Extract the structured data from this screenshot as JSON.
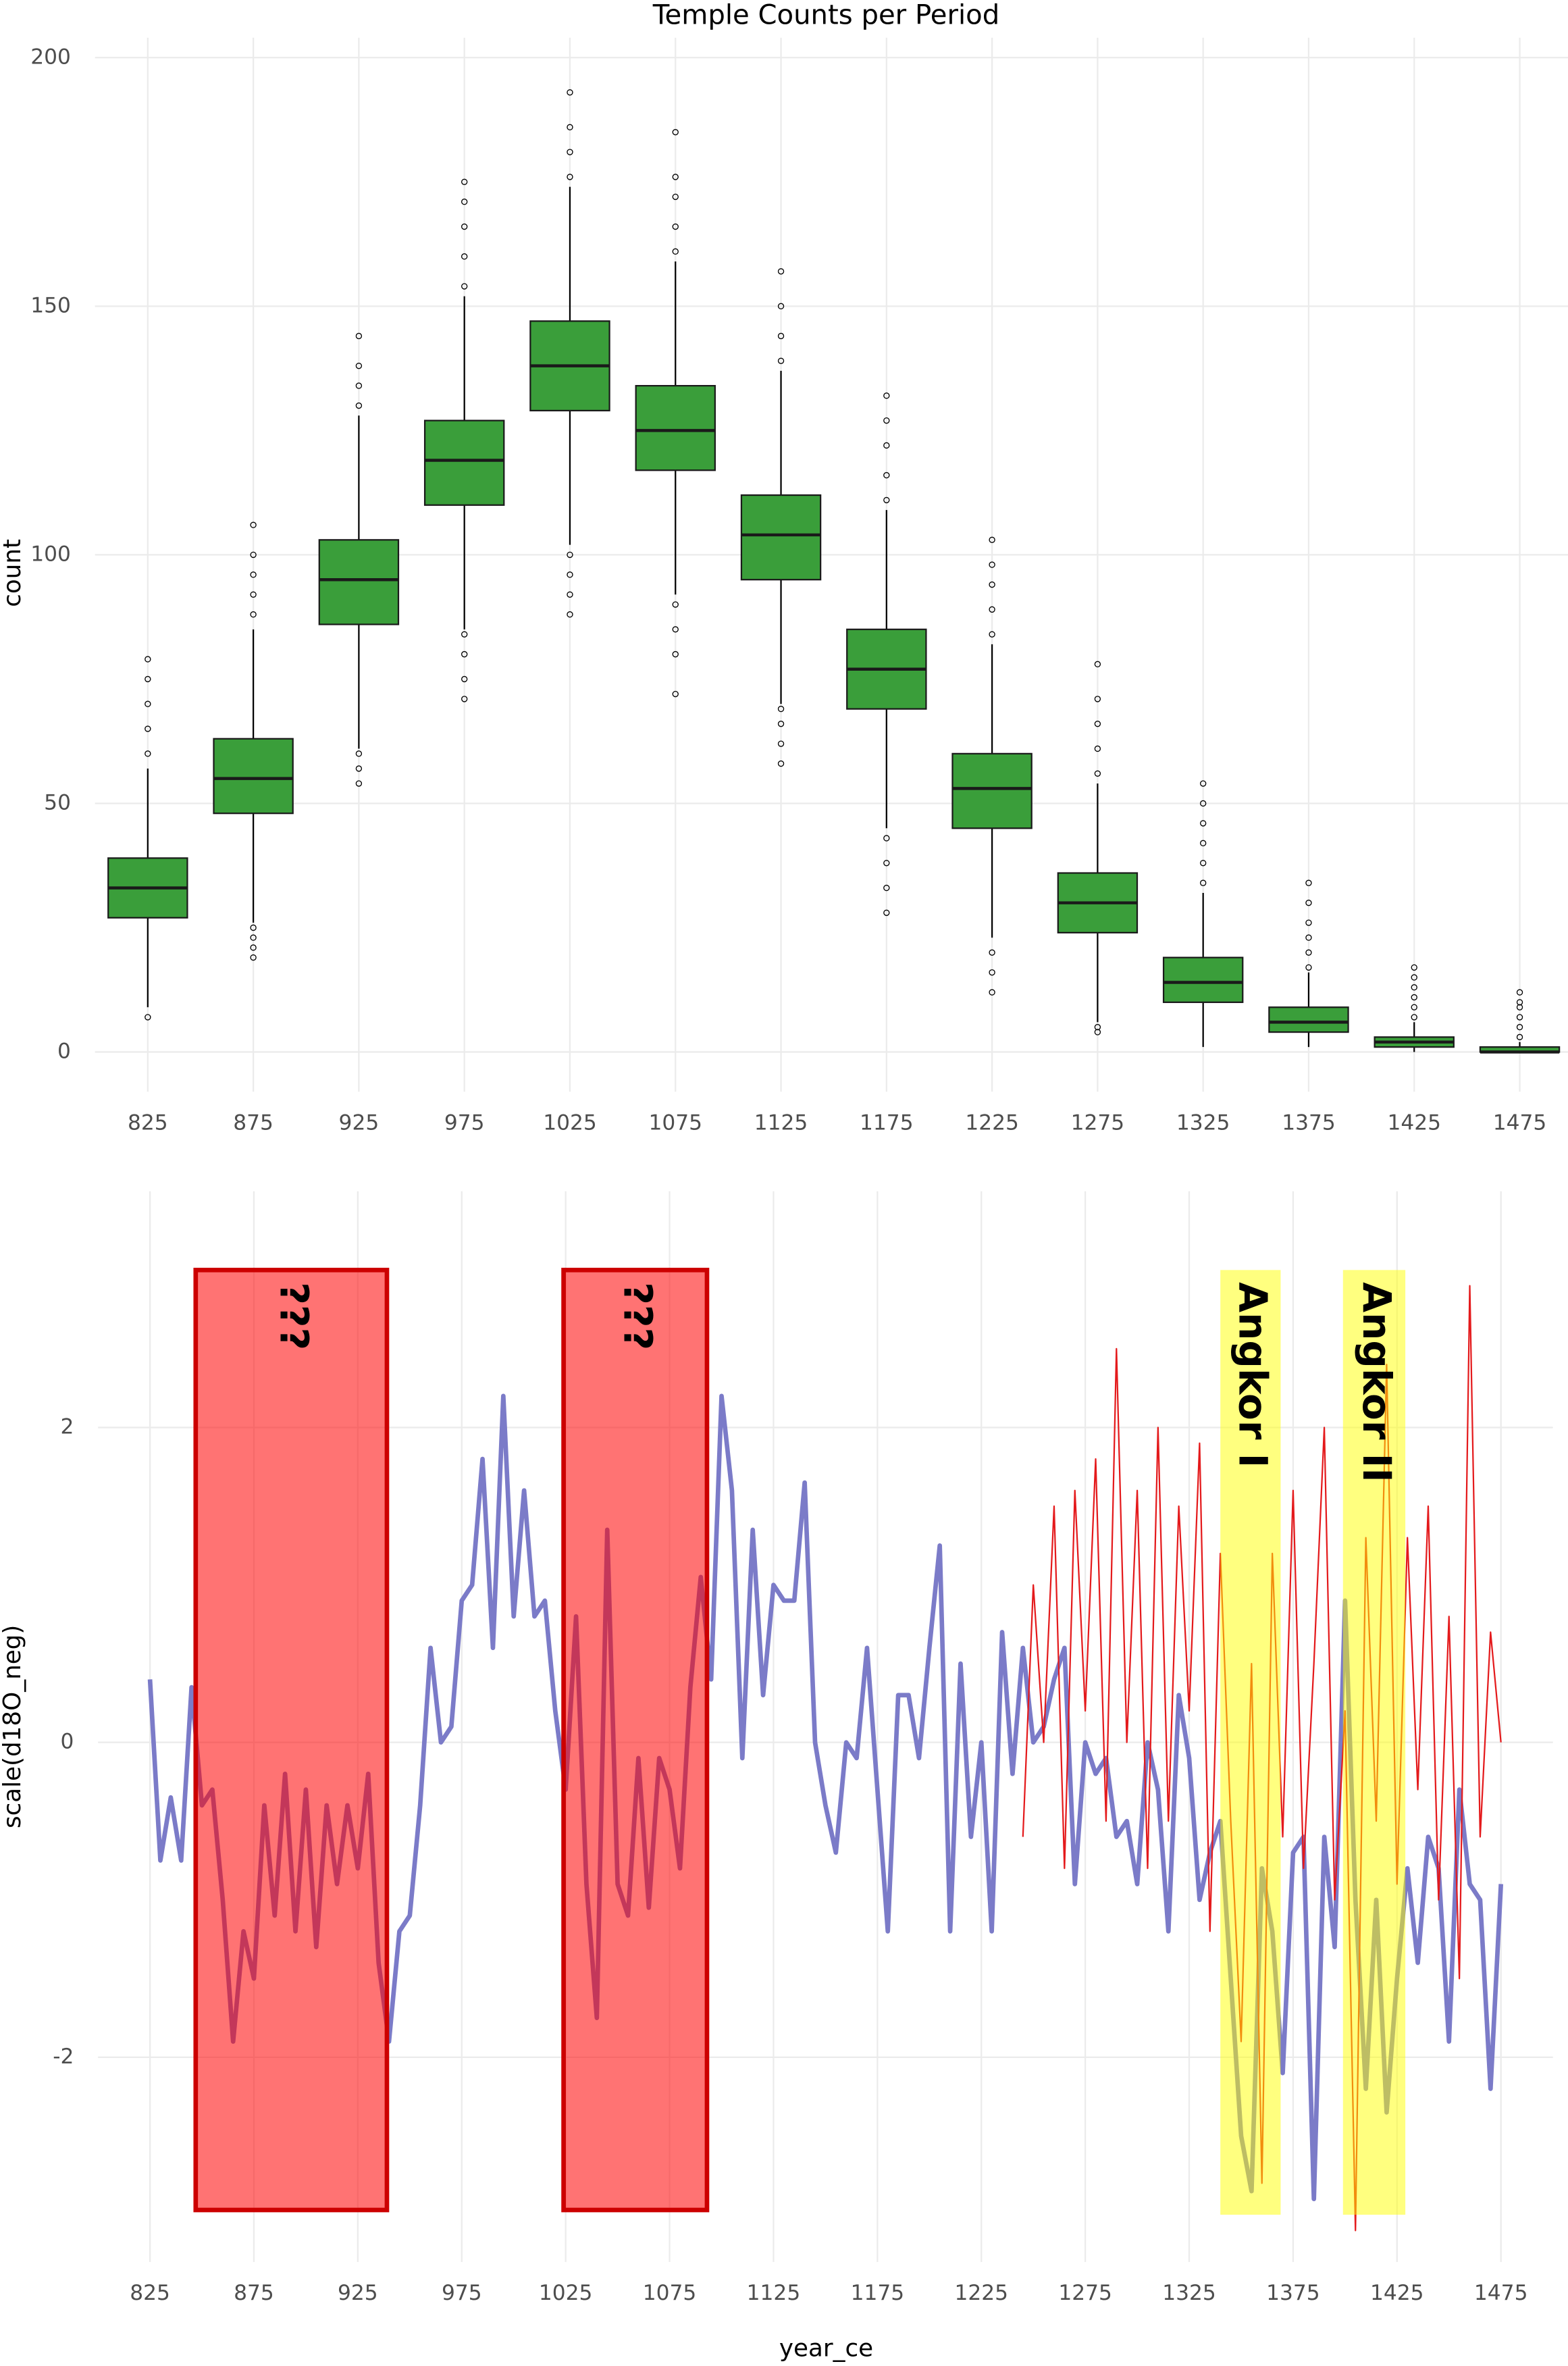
{
  "chart_data": [
    {
      "type": "box",
      "title": "Temple Counts per Period",
      "y_label": "count",
      "categories": [
        "825",
        "875",
        "925",
        "975",
        "1025",
        "1075",
        "1125",
        "1175",
        "1225",
        "1275",
        "1325",
        "1375",
        "1425",
        "1475"
      ],
      "color": "#3a9e3a",
      "boxes": [
        {
          "whislo": 9,
          "q1": 27,
          "med": 33,
          "q3": 39,
          "whishi": 57,
          "fliers": [
            7,
            60,
            65,
            70,
            75,
            79
          ]
        },
        {
          "whislo": 26,
          "q1": 48,
          "med": 55,
          "q3": 63,
          "whishi": 85,
          "fliers": [
            19,
            21,
            23,
            25,
            88,
            92,
            96,
            100,
            106
          ]
        },
        {
          "whislo": 61,
          "q1": 86,
          "med": 95,
          "q3": 103,
          "whishi": 128,
          "fliers": [
            54,
            57,
            60,
            130,
            134,
            138,
            144
          ]
        },
        {
          "whislo": 85,
          "q1": 110,
          "med": 119,
          "q3": 127,
          "whishi": 152,
          "fliers": [
            71,
            75,
            80,
            84,
            154,
            160,
            166,
            171,
            175
          ]
        },
        {
          "whislo": 102,
          "q1": 129,
          "med": 138,
          "q3": 147,
          "whishi": 174,
          "fliers": [
            88,
            92,
            96,
            100,
            176,
            181,
            186,
            193
          ]
        },
        {
          "whislo": 92,
          "q1": 117,
          "med": 125,
          "q3": 134,
          "whishi": 159,
          "fliers": [
            72,
            80,
            85,
            90,
            161,
            166,
            172,
            176,
            185
          ]
        },
        {
          "whislo": 70,
          "q1": 95,
          "med": 104,
          "q3": 112,
          "whishi": 137,
          "fliers": [
            58,
            62,
            66,
            69,
            139,
            144,
            150,
            157
          ]
        },
        {
          "whislo": 45,
          "q1": 69,
          "med": 77,
          "q3": 85,
          "whishi": 109,
          "fliers": [
            28,
            33,
            38,
            43,
            111,
            116,
            122,
            127,
            132
          ]
        },
        {
          "whislo": 23,
          "q1": 45,
          "med": 53,
          "q3": 60,
          "whishi": 82,
          "fliers": [
            12,
            16,
            20,
            84,
            89,
            94,
            98,
            103
          ]
        },
        {
          "whislo": 6,
          "q1": 24,
          "med": 30,
          "q3": 36,
          "whishi": 54,
          "fliers": [
            4,
            5,
            56,
            61,
            66,
            71,
            78
          ]
        },
        {
          "whislo": 1,
          "q1": 10,
          "med": 14,
          "q3": 19,
          "whishi": 32,
          "fliers": [
            34,
            38,
            42,
            46,
            50,
            54
          ]
        },
        {
          "whislo": 1,
          "q1": 4,
          "med": 6,
          "q3": 9,
          "whishi": 16,
          "fliers": [
            17,
            20,
            23,
            26,
            30,
            34
          ]
        },
        {
          "whislo": 0,
          "q1": 1,
          "med": 2,
          "q3": 3,
          "whishi": 6,
          "fliers": [
            7,
            9,
            11,
            13,
            15,
            17
          ]
        },
        {
          "whislo": 0,
          "q1": 0,
          "med": 0,
          "q3": 1,
          "whishi": 2,
          "fliers": [
            3,
            5,
            7,
            9,
            10,
            12
          ]
        }
      ],
      "ylim": [
        -8,
        204
      ],
      "yticks": [
        0,
        50,
        100,
        150,
        200
      ],
      "grid": true
    },
    {
      "type": "line",
      "x_label": "year_ce",
      "y_label": "scale(d18O_neg)",
      "xlim": [
        800,
        1500
      ],
      "xticks": [
        825,
        875,
        925,
        975,
        1025,
        1075,
        1125,
        1175,
        1225,
        1275,
        1325,
        1375,
        1425,
        1475
      ],
      "ylim": [
        -3.3,
        3.5
      ],
      "yticks": [
        -2,
        0,
        2
      ],
      "grid": true,
      "series": [
        {
          "color": "#7b7bc8",
          "width": 3,
          "x": [
            825,
            830,
            835,
            840,
            845,
            850,
            855,
            860,
            865,
            870,
            875,
            880,
            885,
            890,
            895,
            900,
            905,
            910,
            915,
            920,
            925,
            930,
            935,
            940,
            945,
            950,
            955,
            960,
            965,
            970,
            975,
            980,
            985,
            990,
            995,
            1000,
            1005,
            1010,
            1015,
            1020,
            1025,
            1030,
            1035,
            1040,
            1045,
            1050,
            1055,
            1060,
            1065,
            1070,
            1075,
            1080,
            1085,
            1090,
            1095,
            1100,
            1105,
            1110,
            1115,
            1120,
            1125,
            1130,
            1135,
            1140,
            1145,
            1150,
            1155,
            1160,
            1165,
            1170,
            1175,
            1180,
            1185,
            1190,
            1195,
            1200,
            1205,
            1210,
            1215,
            1220,
            1225,
            1230,
            1235,
            1240,
            1245,
            1250,
            1255,
            1260,
            1265,
            1270,
            1275,
            1280,
            1285,
            1290,
            1295,
            1300,
            1305,
            1310,
            1315,
            1320,
            1325,
            1330,
            1335,
            1340,
            1345,
            1350,
            1355,
            1360,
            1365,
            1370,
            1375,
            1380,
            1385,
            1390,
            1395,
            1400,
            1405,
            1410,
            1415,
            1420,
            1425,
            1430,
            1435,
            1440,
            1445,
            1450,
            1455,
            1460,
            1465,
            1470,
            1475
          ],
          "values": [
            0.4,
            -0.75,
            -0.35,
            -0.75,
            0.35,
            -0.4,
            -0.3,
            -1.0,
            -1.9,
            -1.2,
            -1.5,
            -0.4,
            -1.1,
            -0.2,
            -1.2,
            -0.3,
            -1.3,
            -0.4,
            -0.9,
            -0.4,
            -0.8,
            -0.2,
            -1.4,
            -1.9,
            -1.2,
            -1.1,
            -0.4,
            0.6,
            0.0,
            0.1,
            0.9,
            1.0,
            1.8,
            0.6,
            2.2,
            0.8,
            1.6,
            0.8,
            0.9,
            0.2,
            -0.3,
            0.8,
            -0.9,
            -1.75,
            1.35,
            -0.9,
            -1.1,
            -0.1,
            -1.05,
            -0.1,
            -0.3,
            -0.8,
            0.35,
            1.05,
            0.4,
            2.2,
            1.6,
            -0.1,
            1.35,
            0.3,
            1.0,
            0.9,
            0.9,
            1.65,
            0.0,
            -0.4,
            -0.7,
            0.0,
            -0.1,
            0.6,
            -0.3,
            -1.2,
            0.3,
            0.3,
            -0.1,
            0.6,
            1.25,
            -1.2,
            0.5,
            -0.6,
            0.0,
            -1.2,
            0.7,
            -0.2,
            0.6,
            0.0,
            0.1,
            0.4,
            0.6,
            -0.9,
            0.0,
            -0.2,
            -0.1,
            -0.6,
            -0.5,
            -0.9,
            0.0,
            -0.3,
            -1.2,
            0.3,
            -0.1,
            -1.0,
            -0.7,
            -0.5,
            -1.5,
            -2.5,
            -2.85,
            -0.8,
            -1.2,
            -2.1,
            -0.7,
            -0.6,
            -2.9,
            -0.6,
            -1.3,
            0.9,
            -1.0,
            -2.2,
            -1.0,
            -2.35,
            -1.5,
            -0.8,
            -1.4,
            -0.6,
            -0.8,
            -1.9,
            -0.3,
            -0.9,
            -1.0,
            -2.2,
            -0.9
          ]
        },
        {
          "color": "#e41a1c",
          "width": 1,
          "x": [
            1245,
            1250,
            1255,
            1260,
            1265,
            1270,
            1275,
            1280,
            1285,
            1290,
            1295,
            1300,
            1305,
            1310,
            1315,
            1320,
            1325,
            1330,
            1335,
            1340,
            1345,
            1350,
            1355,
            1360,
            1365,
            1370,
            1375,
            1380,
            1385,
            1390,
            1395,
            1400,
            1405,
            1410,
            1415,
            1420,
            1425,
            1430,
            1435,
            1440,
            1445,
            1450,
            1455,
            1460,
            1465,
            1470,
            1475
          ],
          "values": [
            -0.6,
            1.0,
            0.0,
            1.5,
            -0.8,
            1.6,
            0.2,
            1.8,
            -0.5,
            2.5,
            0.0,
            1.6,
            -0.8,
            2.0,
            -0.5,
            1.5,
            0.2,
            1.9,
            -1.2,
            1.2,
            -0.5,
            -1.9,
            0.5,
            -2.8,
            1.2,
            -0.6,
            1.6,
            -0.8,
            0.5,
            2.0,
            -1.0,
            0.2,
            -3.1,
            1.3,
            -0.5,
            2.4,
            -0.9,
            1.3,
            -0.3,
            1.5,
            -1.0,
            0.8,
            -1.5,
            2.9,
            -0.6,
            0.7,
            0.0
          ]
        }
      ],
      "annotations": [
        {
          "label": "???",
          "xmin": 847,
          "xmax": 939,
          "ymin": -2.97,
          "ymax": 3.0,
          "color": "#ff0000"
        },
        {
          "label": "???",
          "xmin": 1024,
          "xmax": 1093,
          "ymin": -2.97,
          "ymax": 3.0,
          "color": "#ff0000"
        },
        {
          "label": "Angkor I",
          "xmin": 1340,
          "xmax": 1369,
          "ymin": -3.0,
          "ymax": 3.0,
          "color": "#ffff00"
        },
        {
          "label": "Angkor II",
          "xmin": 1399,
          "xmax": 1429,
          "ymin": -3.0,
          "ymax": 3.0,
          "color": "#ffff00"
        }
      ]
    }
  ]
}
